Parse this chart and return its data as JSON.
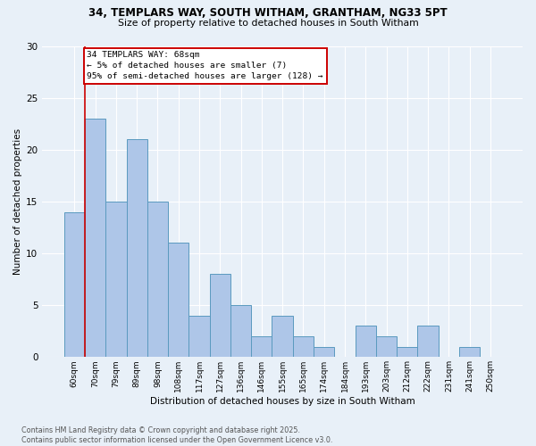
{
  "title_line1": "34, TEMPLARS WAY, SOUTH WITHAM, GRANTHAM, NG33 5PT",
  "title_line2": "Size of property relative to detached houses in South Witham",
  "xlabel": "Distribution of detached houses by size in South Witham",
  "ylabel": "Number of detached properties",
  "categories": [
    "60sqm",
    "70sqm",
    "79sqm",
    "89sqm",
    "98sqm",
    "108sqm",
    "117sqm",
    "127sqm",
    "136sqm",
    "146sqm",
    "155sqm",
    "165sqm",
    "174sqm",
    "184sqm",
    "193sqm",
    "203sqm",
    "212sqm",
    "222sqm",
    "231sqm",
    "241sqm",
    "250sqm"
  ],
  "values": [
    14,
    23,
    15,
    21,
    15,
    11,
    4,
    8,
    5,
    2,
    4,
    2,
    1,
    0,
    3,
    2,
    1,
    3,
    0,
    1,
    0
  ],
  "bar_color": "#aec6e8",
  "bar_edge_color": "#5a9abf",
  "vline_x": 0.5,
  "vline_color": "#cc0000",
  "annotation_text": "34 TEMPLARS WAY: 68sqm\n← 5% of detached houses are smaller (7)\n95% of semi-detached houses are larger (128) →",
  "annotation_box_color": "#ffffff",
  "annotation_box_edge": "#cc0000",
  "footer_line1": "Contains HM Land Registry data © Crown copyright and database right 2025.",
  "footer_line2": "Contains public sector information licensed under the Open Government Licence v3.0.",
  "bg_color": "#e8f0f8",
  "ylim": [
    0,
    30
  ],
  "grid_color": "#ffffff",
  "figwidth": 6.0,
  "figheight": 5.0,
  "dpi": 100
}
